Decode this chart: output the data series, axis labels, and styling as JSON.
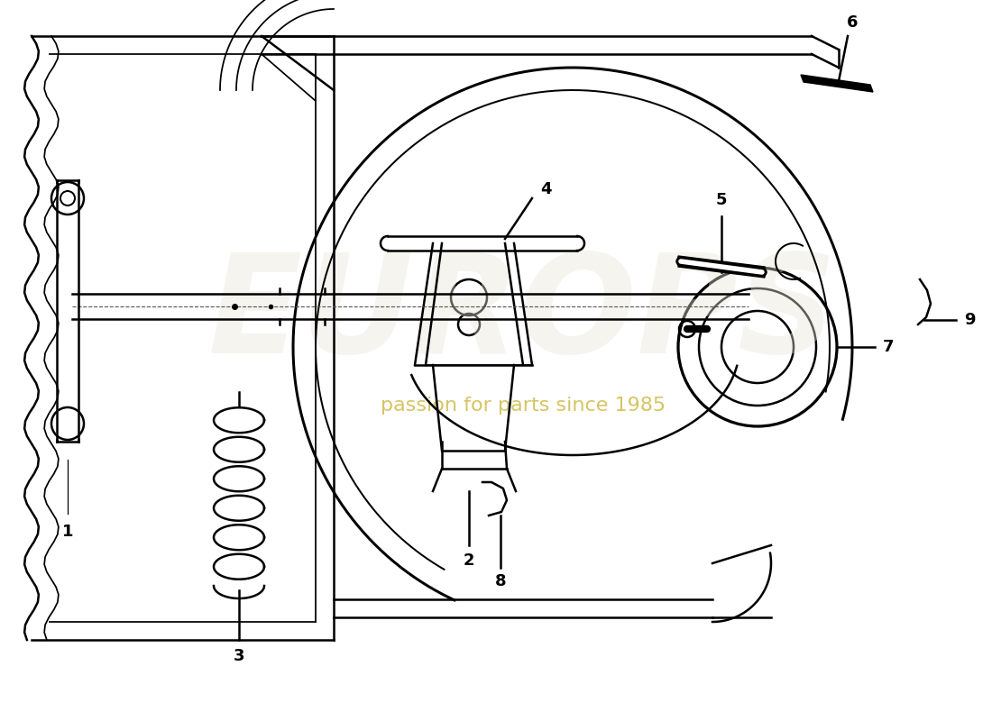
{
  "bg_color": "#ffffff",
  "line_color": "#000000",
  "watermark_text": "passion for parts since 1985",
  "fig_w": 11.0,
  "fig_h": 8.0,
  "dpi": 100
}
